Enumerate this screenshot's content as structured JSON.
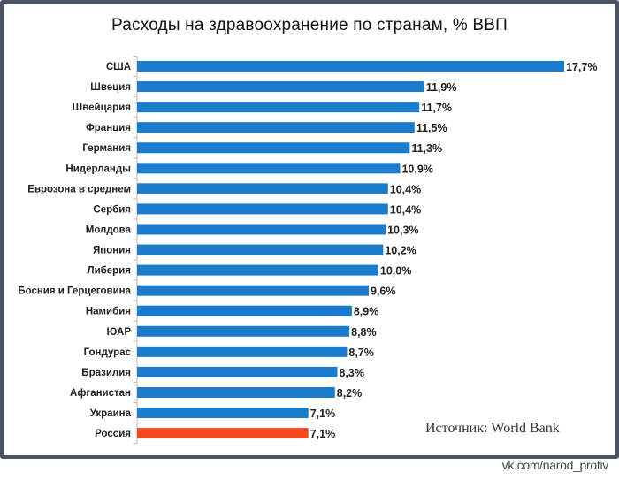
{
  "chart_data": {
    "type": "bar",
    "orientation": "horizontal",
    "title": "Расходы на здравоохранение по странам, % ВВП",
    "categories": [
      "США",
      "Швеция",
      "Швейцария",
      "Франция",
      "Германия",
      "Нидерланды",
      "Еврозона в среднем",
      "Сербия",
      "Молдова",
      "Япония",
      "Либерия",
      "Босния и Герцеговина",
      "Намибия",
      "ЮАР",
      "Гондурас",
      "Бразилия",
      "Афганистан",
      "Украина",
      "Россия"
    ],
    "values": [
      17.7,
      11.9,
      11.7,
      11.5,
      11.3,
      10.9,
      10.4,
      10.4,
      10.3,
      10.2,
      10.0,
      9.6,
      8.9,
      8.8,
      8.7,
      8.3,
      8.2,
      7.1,
      7.1
    ],
    "labels": [
      "17,7%",
      "11,9%",
      "11,7%",
      "11,5%",
      "11,3%",
      "10,9%",
      "10,4%",
      "10,4%",
      "10,3%",
      "10,2%",
      "10,0%",
      "9,6%",
      "8,9%",
      "8,8%",
      "8,7%",
      "8,3%",
      "8,2%",
      "7,1%",
      "7,1%"
    ],
    "highlight_index": 18,
    "colors": {
      "default": "#1b7bcc",
      "highlight": "#f24a1e"
    },
    "xlabel": "",
    "ylabel": "",
    "xlim": [
      0,
      17.7
    ],
    "grid": false,
    "legend": "none"
  },
  "source": "Источник: World Bank",
  "credit": "vk.com/narod_protiv"
}
